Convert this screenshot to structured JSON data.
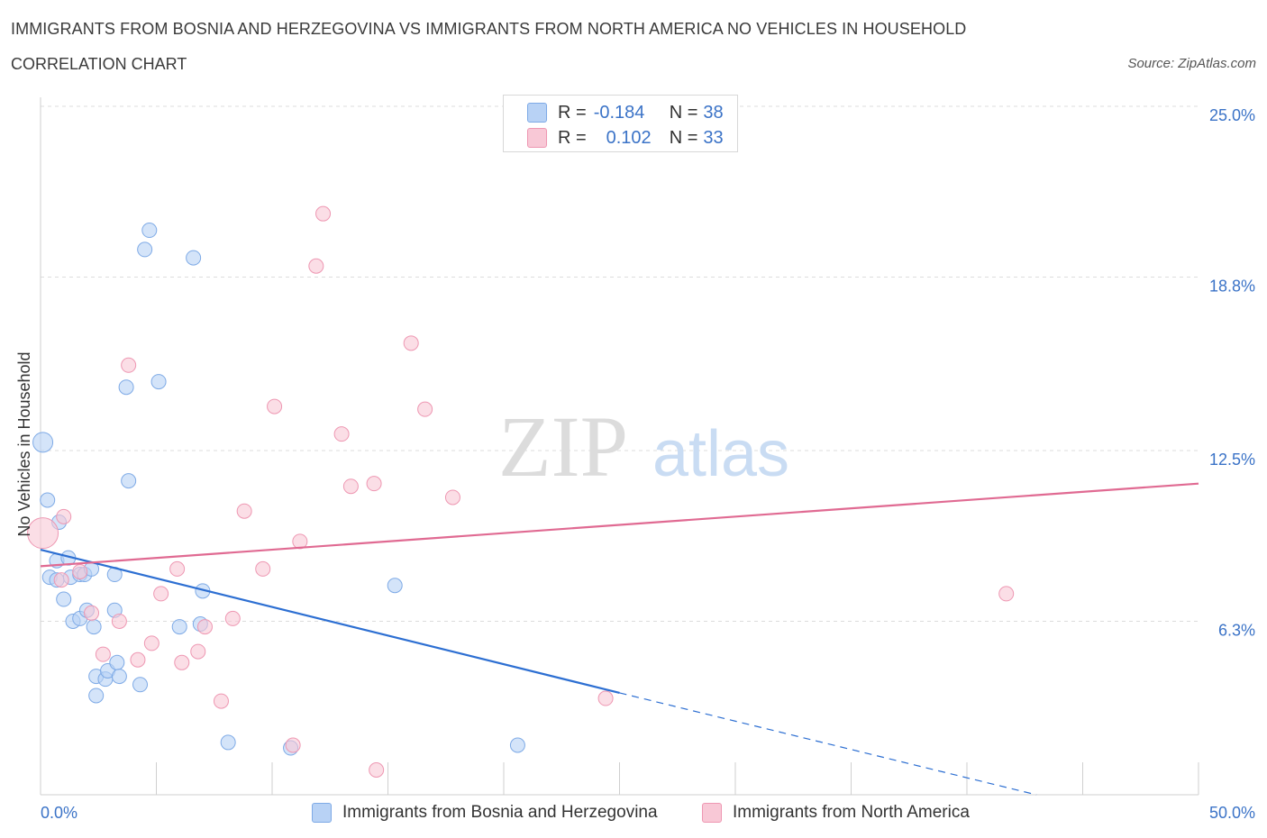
{
  "title": "IMMIGRANTS FROM BOSNIA AND HERZEGOVINA VS IMMIGRANTS FROM NORTH AMERICA NO VEHICLES IN HOUSEHOLD",
  "subtitle": "CORRELATION CHART",
  "source": "Source: ZipAtlas.com",
  "watermark": {
    "zip": "ZIP",
    "atlas": "atlas"
  },
  "legend": {
    "rows": [
      {
        "r_label": "R = ",
        "r_value": "-0.184",
        "n_label": "N = ",
        "n_value": "38"
      },
      {
        "r_label": "R = ",
        "r_value": "0.102",
        "n_label": "N = ",
        "n_value": "33"
      }
    ]
  },
  "colors": {
    "blue_fill": "#b8d2f5",
    "blue_stroke": "#7eaae6",
    "blue_line": "#2d6fd2",
    "pink_fill": "#f8c8d6",
    "pink_stroke": "#ee97b2",
    "pink_line": "#e06a92",
    "tick_label": "#3b73c7",
    "grid": "#dcdcdc"
  },
  "chart_data": {
    "type": "scatter",
    "xlabel": "",
    "ylabel": "No Vehicles in Household",
    "xlim": [
      0,
      50
    ],
    "ylim": [
      0,
      25
    ],
    "x_tick_labels": [
      "0.0%",
      "50.0%"
    ],
    "y_ticks": [
      6.3,
      12.5,
      18.8,
      25.0
    ],
    "y_tick_labels": [
      "6.3%",
      "12.5%",
      "18.8%",
      "25.0%"
    ],
    "grid": true,
    "legend_position": "top-center",
    "series": [
      {
        "name": "Immigrants from Bosnia and Herzegovina",
        "color": "#b8d2f5",
        "points": [
          [
            0.1,
            12.8,
            2
          ],
          [
            0.3,
            10.7,
            1
          ],
          [
            0.8,
            9.9,
            1
          ],
          [
            0.4,
            7.9,
            1
          ],
          [
            0.7,
            7.8,
            1
          ],
          [
            0.7,
            8.5,
            1
          ],
          [
            1.2,
            8.6,
            1
          ],
          [
            1.3,
            7.9,
            1
          ],
          [
            1.7,
            8.0,
            1
          ],
          [
            1.9,
            8.0,
            1
          ],
          [
            2.2,
            8.2,
            1
          ],
          [
            1.0,
            7.1,
            1
          ],
          [
            1.4,
            6.3,
            1
          ],
          [
            1.7,
            6.4,
            1
          ],
          [
            2.0,
            6.7,
            1
          ],
          [
            2.3,
            6.1,
            1
          ],
          [
            3.2,
            6.7,
            1
          ],
          [
            3.2,
            8.0,
            1
          ],
          [
            2.4,
            4.3,
            1
          ],
          [
            2.8,
            4.2,
            1
          ],
          [
            2.9,
            4.5,
            1
          ],
          [
            3.3,
            4.8,
            1
          ],
          [
            3.4,
            4.3,
            1
          ],
          [
            2.4,
            3.6,
            1
          ],
          [
            4.3,
            4.0,
            1
          ],
          [
            3.8,
            11.4,
            1
          ],
          [
            3.7,
            14.8,
            1
          ],
          [
            5.1,
            15.0,
            1
          ],
          [
            4.5,
            19.8,
            1
          ],
          [
            4.7,
            20.5,
            1
          ],
          [
            6.6,
            19.5,
            1
          ],
          [
            6.0,
            6.1,
            1
          ],
          [
            6.9,
            6.2,
            1
          ],
          [
            7.0,
            7.4,
            1
          ],
          [
            8.1,
            1.9,
            1
          ],
          [
            10.8,
            1.7,
            1
          ],
          [
            15.3,
            7.6,
            1
          ],
          [
            20.6,
            1.8,
            1
          ]
        ]
      },
      {
        "name": "Immigrants from North America",
        "color": "#f8c8d6",
        "points": [
          [
            0.1,
            9.5,
            3
          ],
          [
            1.0,
            10.1,
            1
          ],
          [
            0.9,
            7.8,
            1
          ],
          [
            1.7,
            8.1,
            1
          ],
          [
            2.2,
            6.6,
            1
          ],
          [
            2.7,
            5.1,
            1
          ],
          [
            3.4,
            6.3,
            1
          ],
          [
            3.8,
            15.6,
            1
          ],
          [
            4.2,
            4.9,
            1
          ],
          [
            4.8,
            5.5,
            1
          ],
          [
            5.2,
            7.3,
            1
          ],
          [
            5.9,
            8.2,
            1
          ],
          [
            6.1,
            4.8,
            1
          ],
          [
            6.8,
            5.2,
            1
          ],
          [
            7.1,
            6.1,
            1
          ],
          [
            7.8,
            3.4,
            1
          ],
          [
            8.3,
            6.4,
            1
          ],
          [
            8.8,
            10.3,
            1
          ],
          [
            9.6,
            8.2,
            1
          ],
          [
            10.1,
            14.1,
            1
          ],
          [
            10.9,
            1.8,
            1
          ],
          [
            11.2,
            9.2,
            1
          ],
          [
            11.9,
            19.2,
            1
          ],
          [
            12.2,
            21.1,
            1
          ],
          [
            13.0,
            13.1,
            1
          ],
          [
            13.4,
            11.2,
            1
          ],
          [
            14.4,
            11.3,
            1
          ],
          [
            14.5,
            0.9,
            1
          ],
          [
            16.0,
            16.4,
            1
          ],
          [
            16.6,
            14.0,
            1
          ],
          [
            17.8,
            10.8,
            1
          ],
          [
            24.4,
            3.5,
            1
          ],
          [
            41.7,
            7.3,
            1
          ]
        ]
      }
    ],
    "trendlines": [
      {
        "series": "Immigrants from Bosnia and Herzegovina",
        "from": [
          0,
          8.9
        ],
        "to": [
          25,
          3.7
        ],
        "dashed_to": [
          43,
          0
        ],
        "color": "#2d6fd2"
      },
      {
        "series": "Immigrants from North America",
        "from": [
          0,
          8.3
        ],
        "to": [
          50,
          11.3
        ],
        "color": "#e06a92"
      }
    ]
  }
}
